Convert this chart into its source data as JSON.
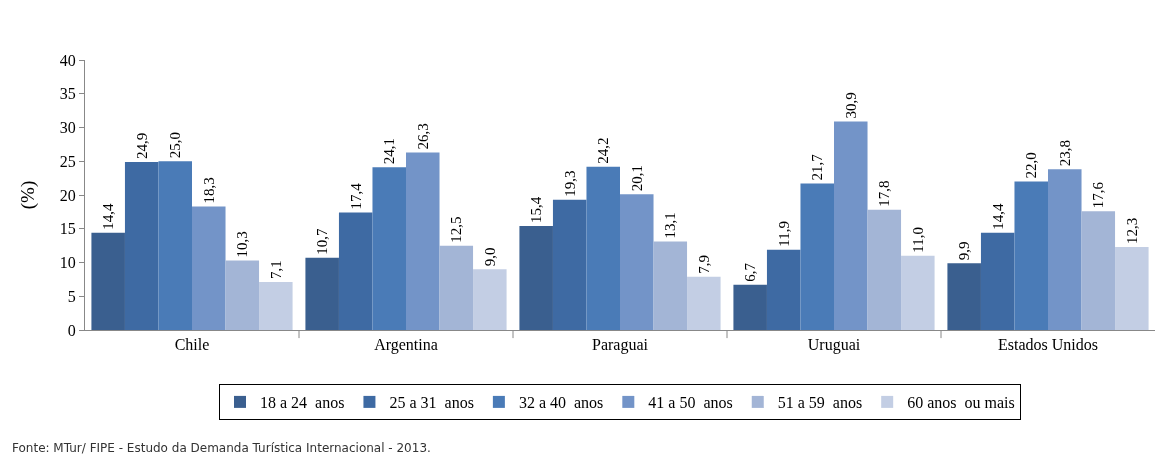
{
  "chart_data": {
    "type": "bar",
    "ylabel": "(%)",
    "categories": [
      "Chile",
      "Argentina",
      "Paraguai",
      "Uruguai",
      "Estados Unidos"
    ],
    "series": [
      {
        "name": "18 a 24  anos",
        "color": "#3a5f8f",
        "values": [
          14.4,
          10.7,
          15.4,
          6.7,
          9.9
        ],
        "value_labels": [
          "14,4",
          "10,7",
          "15,4",
          "6,7",
          "9,9"
        ]
      },
      {
        "name": "25 a 31  anos",
        "color": "#3e6aa3",
        "values": [
          24.9,
          17.4,
          19.3,
          11.9,
          14.4
        ],
        "value_labels": [
          "24,9",
          "17,4",
          "19,3",
          "11,9",
          "14,4"
        ]
      },
      {
        "name": "32 a 40  anos",
        "color": "#4a7bb7",
        "values": [
          25.0,
          24.1,
          24.2,
          21.7,
          22.0
        ],
        "value_labels": [
          "25,0",
          "24,1",
          "24,2",
          "21,7",
          "22,0"
        ]
      },
      {
        "name": "41 a 50  anos",
        "color": "#7394c8",
        "values": [
          18.3,
          26.3,
          20.1,
          30.9,
          23.8
        ],
        "value_labels": [
          "18,3",
          "26,3",
          "20,1",
          "30,9",
          "23,8"
        ]
      },
      {
        "name": "51 a 59  anos",
        "color": "#a3b5d6",
        "values": [
          10.3,
          12.5,
          13.1,
          17.8,
          17.6
        ],
        "value_labels": [
          "10,3",
          "12,5",
          "13,1",
          "17,8",
          "17,6"
        ]
      },
      {
        "name": "60 anos  ou mais",
        "color": "#c3cee4",
        "values": [
          7.1,
          9.0,
          7.9,
          11.0,
          12.3
        ],
        "value_labels": [
          "7,1",
          "9,0",
          "7,9",
          "11,0",
          "12,3"
        ]
      }
    ],
    "ylim": [
      0,
      40
    ],
    "yticks": [
      0,
      5,
      10,
      15,
      20,
      25,
      30,
      35,
      40
    ],
    "legend": "bottom",
    "annotations": [
      "Fonte: MTur/ FIPE - Estudo da Demanda Turística Internacional - 2013."
    ]
  }
}
